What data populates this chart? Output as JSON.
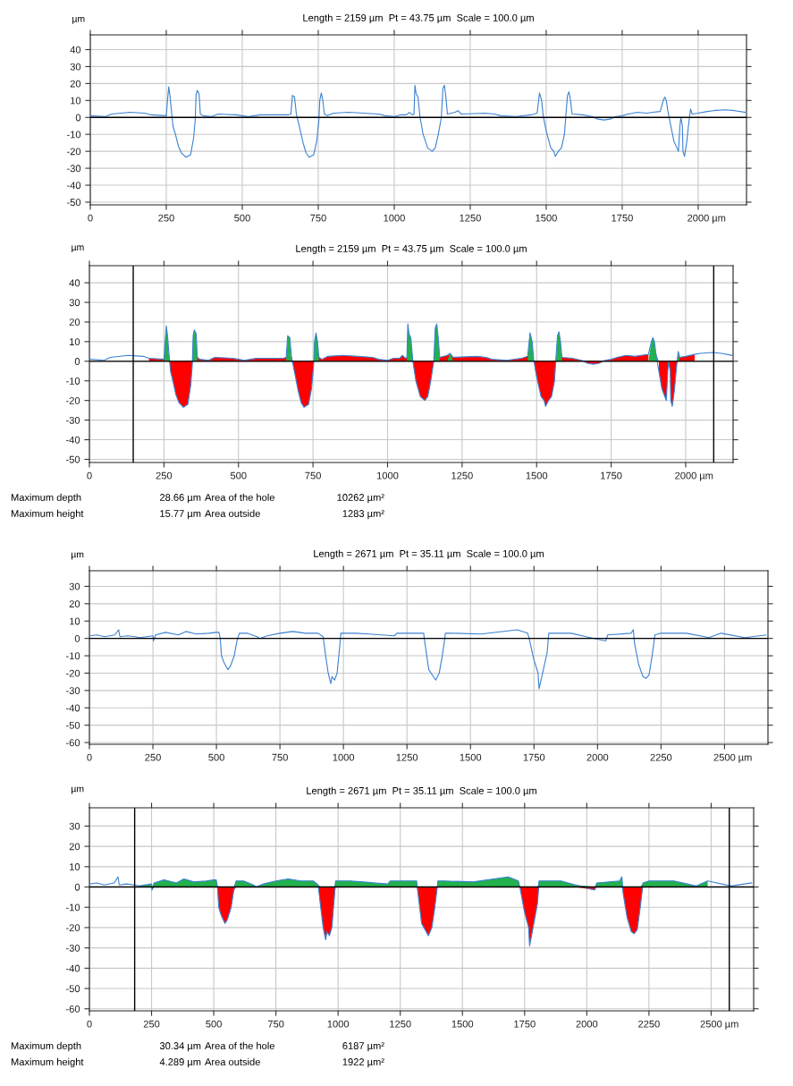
{
  "chart_data": [
    {
      "type": "line",
      "title": "Length = 2159 µm  Pt = 43.75 µm  Scale = 100.0 µm",
      "ylabel": "µm",
      "xlabel": "µm",
      "grid": true,
      "xlim": [
        0,
        2159
      ],
      "xticks": [
        0,
        250,
        500,
        750,
        1000,
        1250,
        1500,
        1750,
        2000
      ],
      "ylim": [
        -51.6,
        48.7
      ],
      "yticks": [
        -50,
        -40,
        -30,
        -20,
        -10,
        0,
        10,
        20,
        30,
        40
      ],
      "ref_lines": [
        {
          "axis": "y",
          "value": 0,
          "color": "#000000"
        }
      ],
      "series": [
        {
          "color": "#3c82d2",
          "x": [
            0,
            50,
            70,
            130,
            180,
            200,
            250,
            255,
            258,
            262,
            268,
            272,
            280,
            290,
            300,
            315,
            330,
            340,
            345,
            348,
            352,
            358,
            362,
            370,
            400,
            420,
            480,
            500,
            520,
            540,
            560,
            600,
            650,
            660,
            665,
            672,
            678,
            690,
            700,
            710,
            720,
            735,
            745,
            752,
            755,
            760,
            765,
            770,
            780,
            800,
            850,
            900,
            950,
            970,
            1000,
            1020,
            1040,
            1050,
            1060,
            1065,
            1068,
            1072,
            1078,
            1085,
            1095,
            1110,
            1125,
            1135,
            1145,
            1155,
            1160,
            1165,
            1170,
            1175,
            1200,
            1210,
            1220,
            1300,
            1330,
            1350,
            1400,
            1450,
            1470,
            1475,
            1478,
            1485,
            1490,
            1500,
            1515,
            1525,
            1530,
            1540,
            1550,
            1560,
            1565,
            1570,
            1575,
            1580,
            1585,
            1620,
            1650,
            1670,
            1690,
            1710,
            1730,
            1750,
            1770,
            1800,
            1830,
            1850,
            1875,
            1885,
            1890,
            1895,
            1900,
            1910,
            1920,
            1935,
            1940,
            1943,
            1948,
            1950,
            1955,
            1962,
            1968,
            1972,
            1975,
            1980,
            2000,
            2030,
            2050,
            2090,
            2120,
            2155
          ],
          "values": [
            1,
            0.5,
            2,
            3,
            2.5,
            1.5,
            1,
            12,
            18,
            13,
            2,
            -5,
            -10,
            -17,
            -21,
            -23.5,
            -22,
            -12,
            -2,
            13,
            16,
            14,
            2,
            1,
            0.5,
            2,
            1.5,
            1,
            0.5,
            1,
            1.5,
            1.5,
            1.5,
            2,
            13,
            12,
            2,
            -7,
            -15,
            -21,
            -23.5,
            -22,
            -14,
            -2,
            10,
            14.5,
            10,
            2,
            1,
            2.5,
            3,
            2.5,
            2,
            1,
            0.5,
            1.5,
            1.5,
            3,
            1.5,
            2,
            19,
            14,
            12,
            0,
            -10,
            -18,
            -20,
            -18,
            -10,
            0,
            17,
            19,
            12,
            2,
            3,
            4,
            2,
            2.5,
            2,
            1,
            0.5,
            1.5,
            2.5,
            10,
            14.5,
            10,
            1,
            -8,
            -18,
            -20,
            -23,
            -20,
            -18,
            -10,
            2,
            13,
            15,
            10,
            2,
            1.5,
            0.5,
            -1,
            -1.5,
            -1,
            0.5,
            1,
            2,
            3,
            2.5,
            3,
            3.5,
            10,
            12,
            10,
            4,
            -5,
            -14,
            -20,
            -5,
            0,
            -5,
            -20,
            -23,
            -15,
            -5,
            1,
            5,
            2,
            2.5,
            3.5,
            4,
            4.5,
            4,
            3
          ]
        }
      ]
    },
    {
      "type": "line",
      "title": "Length = 2159 µm  Pt = 43.75 µm  Scale = 100.0 µm",
      "ylabel": "µm",
      "xlabel": "µm",
      "grid": true,
      "xlim": [
        0,
        2159
      ],
      "xticks": [
        0,
        250,
        500,
        750,
        1000,
        1250,
        1500,
        1750,
        2000
      ],
      "ylim": [
        -51.6,
        48.7
      ],
      "yticks": [
        -50,
        -40,
        -30,
        -20,
        -10,
        0,
        10,
        20,
        30,
        40
      ],
      "ref_lines": [
        {
          "axis": "y",
          "value": 0,
          "color": "#000000"
        },
        {
          "axis": "x",
          "value": 147,
          "color": "#000000"
        },
        {
          "axis": "x",
          "value": 2094,
          "color": "#000000"
        }
      ],
      "annotations": [
        "Maximum depth",
        "28.66 µm",
        "Area of the hole",
        "10262 µm²",
        "Maximum height",
        "15.77 µm",
        "Area outside",
        "1283 µm²"
      ],
      "series": [
        {
          "type": "area",
          "color": "#ff0000",
          "x": [
            200,
            250,
            255,
            258,
            262,
            268,
            272,
            280,
            290,
            300,
            315,
            330,
            340,
            345,
            348,
            352,
            358,
            362,
            370,
            400,
            420,
            480,
            500,
            520,
            540,
            560,
            600,
            650,
            660,
            665,
            672,
            678,
            690,
            700,
            710,
            720,
            735,
            745,
            752,
            755,
            760,
            765,
            770,
            780,
            800,
            850,
            900,
            950,
            970,
            1000,
            1020,
            1040,
            1050,
            1060,
            1065,
            1068,
            1072,
            1078,
            1085,
            1095,
            1110,
            1125,
            1135,
            1145,
            1155,
            1160,
            1165,
            1170,
            1175,
            1200,
            1210,
            1220,
            1300,
            1330,
            1350,
            1400,
            1450,
            1470,
            1475,
            1478,
            1485,
            1490,
            1500,
            1515,
            1525,
            1530,
            1540,
            1550,
            1560,
            1565,
            1570,
            1575,
            1580,
            1585,
            1620,
            1650,
            1670,
            1690,
            1710,
            1730,
            1750,
            1770,
            1800,
            1830,
            1850,
            1875,
            1885,
            1890,
            1895,
            1900,
            1910,
            1920,
            1935,
            1940,
            1943,
            1948,
            1950,
            1955,
            1962,
            1968,
            1972,
            1975,
            1980,
            2000,
            2030
          ],
          "values": [
            1.5,
            1,
            3.5,
            3.5,
            3.5,
            2,
            -5,
            -10,
            -17,
            -21,
            -23.5,
            -22,
            -12,
            -2,
            3.5,
            3.5,
            3.5,
            2,
            1,
            0.5,
            2,
            1.5,
            1,
            0.5,
            1,
            1.5,
            1.5,
            1.5,
            2,
            3.5,
            3.5,
            2,
            -7,
            -15,
            -21,
            -23.5,
            -22,
            -14,
            -2,
            3.5,
            3.5,
            3.5,
            2,
            1,
            2.5,
            3,
            2.5,
            2,
            1,
            0.5,
            1.5,
            1.5,
            3,
            1.5,
            2,
            3.5,
            3.5,
            3.5,
            0,
            -10,
            -18,
            -20,
            -18,
            -10,
            0,
            3.5,
            3.5,
            3.5,
            2,
            3,
            3.5,
            2,
            2.5,
            2,
            1,
            0.5,
            1.5,
            2.5,
            3.5,
            3.5,
            3.5,
            1,
            -8,
            -18,
            -20,
            -23,
            -20,
            -18,
            -10,
            2,
            3.5,
            3.5,
            3.5,
            2,
            1.5,
            0.5,
            -1,
            -1.5,
            -1,
            0.5,
            1,
            2,
            3,
            2.5,
            3,
            3.5,
            null,
            null,
            null,
            null,
            -5,
            -14,
            -20,
            -5,
            0,
            -5,
            -20,
            -23,
            -15,
            -5,
            1,
            3.5,
            2,
            2.5,
            3.5
          ]
        },
        {
          "type": "area",
          "color": "#22b14c",
          "x": [
            200,
            250,
            255,
            258,
            262,
            268,
            272,
            280,
            290,
            300,
            315,
            330,
            340,
            345,
            348,
            352,
            358,
            362,
            370,
            400,
            420,
            480,
            500,
            520,
            540,
            560,
            600,
            650,
            660,
            665,
            672,
            678,
            690,
            700,
            710,
            720,
            735,
            745,
            752,
            755,
            760,
            765,
            770,
            780,
            800,
            850,
            900,
            950,
            970,
            1000,
            1020,
            1040,
            1050,
            1060,
            1065,
            1068,
            1072,
            1078,
            1085,
            1095,
            1110,
            1125,
            1135,
            1145,
            1155,
            1160,
            1165,
            1170,
            1175,
            1200,
            1210,
            1220,
            1300,
            1330,
            1350,
            1400,
            1450,
            1470,
            1475,
            1478,
            1485,
            1490,
            1500,
            1515,
            1525,
            1530,
            1540,
            1550,
            1560,
            1565,
            1570,
            1575,
            1580,
            1585,
            1620,
            1650,
            1670,
            1690,
            1710,
            1730,
            1750,
            1770,
            1800,
            1830,
            1850,
            1875,
            1885,
            1890,
            1895,
            1900,
            1910,
            1920,
            1935,
            1940,
            1943,
            1948,
            1950,
            1955,
            1962,
            1968,
            1972,
            1975,
            1980,
            2000,
            2030
          ],
          "values": [
            0,
            0,
            12,
            18,
            13,
            0,
            0,
            0,
            0,
            0,
            0,
            0,
            0,
            0,
            13,
            16,
            14,
            0,
            0,
            0,
            0,
            0,
            0,
            0,
            0,
            0,
            0,
            0,
            0,
            13,
            12,
            0,
            0,
            0,
            0,
            0,
            0,
            0,
            0,
            10,
            14.5,
            10,
            0,
            0,
            0,
            0,
            0,
            0,
            0,
            0,
            0,
            0,
            0,
            0,
            0,
            19,
            14,
            12,
            0,
            0,
            0,
            0,
            0,
            0,
            0,
            17,
            19,
            12,
            0,
            0,
            4,
            0,
            0,
            0,
            0,
            0,
            0,
            0,
            10,
            14.5,
            10,
            0,
            0,
            0,
            0,
            0,
            0,
            0,
            0,
            0,
            13,
            15,
            10,
            0,
            0,
            0,
            0,
            0,
            0,
            0,
            0,
            0,
            0,
            0,
            0,
            0,
            10,
            12,
            10,
            4,
            0,
            0,
            0,
            0,
            0,
            0,
            0,
            0,
            0,
            0,
            0,
            5,
            0,
            0,
            0
          ]
        },
        {
          "type": "line",
          "color": "#3c82d2",
          "x": [
            0,
            50,
            70,
            130,
            180,
            200,
            250,
            255,
            258,
            262,
            268,
            272,
            280,
            290,
            300,
            315,
            330,
            340,
            345,
            348,
            352,
            358,
            362,
            370,
            400,
            420,
            480,
            500,
            520,
            540,
            560,
            600,
            650,
            660,
            665,
            672,
            678,
            690,
            700,
            710,
            720,
            735,
            745,
            752,
            755,
            760,
            765,
            770,
            780,
            800,
            850,
            900,
            950,
            970,
            1000,
            1020,
            1040,
            1050,
            1060,
            1065,
            1068,
            1072,
            1078,
            1085,
            1095,
            1110,
            1125,
            1135,
            1145,
            1155,
            1160,
            1165,
            1170,
            1175,
            1200,
            1210,
            1220,
            1300,
            1330,
            1350,
            1400,
            1450,
            1470,
            1475,
            1478,
            1485,
            1490,
            1500,
            1515,
            1525,
            1530,
            1540,
            1550,
            1560,
            1565,
            1570,
            1575,
            1580,
            1585,
            1620,
            1650,
            1670,
            1690,
            1710,
            1730,
            1750,
            1770,
            1800,
            1830,
            1850,
            1875,
            1885,
            1890,
            1895,
            1900,
            1910,
            1920,
            1935,
            1940,
            1943,
            1948,
            1950,
            1955,
            1962,
            1968,
            1972,
            1975,
            1980,
            2000,
            2030,
            2050,
            2090,
            2120,
            2155
          ],
          "values": [
            1,
            0.5,
            2,
            3,
            2.5,
            1.5,
            1,
            12,
            18,
            13,
            2,
            -5,
            -10,
            -17,
            -21,
            -23.5,
            -22,
            -12,
            -2,
            13,
            16,
            14,
            2,
            1,
            0.5,
            2,
            1.5,
            1,
            0.5,
            1,
            1.5,
            1.5,
            1.5,
            2,
            13,
            12,
            2,
            -7,
            -15,
            -21,
            -23.5,
            -22,
            -14,
            -2,
            10,
            14.5,
            10,
            2,
            1,
            2.5,
            3,
            2.5,
            2,
            1,
            0.5,
            1.5,
            1.5,
            3,
            1.5,
            2,
            19,
            14,
            12,
            0,
            -10,
            -18,
            -20,
            -18,
            -10,
            0,
            17,
            19,
            12,
            2,
            3,
            4,
            2,
            2.5,
            2,
            1,
            0.5,
            1.5,
            2.5,
            10,
            14.5,
            10,
            1,
            -8,
            -18,
            -20,
            -23,
            -20,
            -18,
            -10,
            2,
            13,
            15,
            10,
            2,
            1.5,
            0.5,
            -1,
            -1.5,
            -1,
            0.5,
            1,
            2,
            3,
            2.5,
            3,
            3.5,
            10,
            12,
            10,
            4,
            -5,
            -14,
            -20,
            -5,
            0,
            -5,
            -20,
            -23,
            -15,
            -5,
            1,
            5,
            2,
            2.5,
            3.5,
            4,
            4.5,
            4,
            3
          ]
        }
      ]
    },
    {
      "type": "line",
      "title": "Length = 2671 µm  Pt = 35.11 µm  Scale = 100.0 µm",
      "ylabel": "µm",
      "xlabel": "µm",
      "grid": true,
      "xlim": [
        0,
        2671
      ],
      "xticks": [
        0,
        250,
        500,
        750,
        1000,
        1250,
        1500,
        1750,
        2000,
        2250,
        2500
      ],
      "ylim": [
        -61,
        39
      ],
      "yticks": [
        -60,
        -50,
        -40,
        -30,
        -20,
        -10,
        0,
        10,
        20,
        30
      ],
      "ref_lines": [
        {
          "axis": "y",
          "value": 0,
          "color": "#000000"
        }
      ],
      "series": [
        {
          "color": "#3c82d2",
          "x": [
            0,
            30,
            60,
            100,
            115,
            120,
            150,
            180,
            200,
            250,
            252,
            260,
            300,
            350,
            380,
            420,
            470,
            500,
            510,
            515,
            520,
            530,
            545,
            555,
            570,
            580,
            590,
            620,
            660,
            670,
            700,
            750,
            800,
            850,
            900,
            920,
            930,
            940,
            950,
            955,
            965,
            975,
            985,
            990,
            1050,
            1100,
            1150,
            1200,
            1210,
            1250,
            1316,
            1318,
            1328,
            1336,
            1363,
            1377,
            1389,
            1399,
            1401,
            1425,
            1542,
            1684,
            1725,
            1731,
            1749,
            1766,
            1770,
            1784,
            1802,
            1808,
            1896,
            1955,
            2032,
            2040,
            2132,
            2141,
            2146,
            2162,
            2179,
            2191,
            2203,
            2215,
            2226,
            2250,
            2350,
            2439,
            2486,
            2580,
            2663
          ],
          "values": [
            1.5,
            2,
            1,
            2,
            5,
            1,
            1.5,
            1,
            0.5,
            1.5,
            -1.5,
            2,
            3.5,
            2,
            4,
            2.5,
            3,
            3.5,
            3.5,
            0,
            -10,
            -14,
            -18,
            -16,
            -10,
            -2,
            3,
            3,
            1,
            0,
            1.5,
            3,
            4,
            3,
            3,
            1,
            -10,
            -20,
            -26,
            -22,
            -24,
            -20,
            -5,
            3,
            3,
            2.5,
            2,
            1.5,
            3,
            3,
            3,
            0,
            -10,
            -18,
            -24,
            -20,
            -10,
            0,
            3,
            3,
            2.5,
            5,
            3,
            0,
            -12,
            -20,
            -29,
            -20,
            -8,
            3,
            3,
            1,
            -1.5,
            2,
            3,
            5,
            -3,
            -15,
            -22,
            -23,
            -21,
            -10,
            2,
            3,
            3,
            0.5,
            3,
            0.5,
            2
          ]
        }
      ]
    },
    {
      "type": "line",
      "title": "Length = 2671 µm  Pt = 35.11 µm  Scale = 100.0 µm",
      "ylabel": "µm",
      "xlabel": "µm",
      "grid": true,
      "xlim": [
        0,
        2671
      ],
      "xticks": [
        0,
        250,
        500,
        750,
        1000,
        1250,
        1500,
        1750,
        2000,
        2250,
        2500
      ],
      "ylim": [
        -61,
        39
      ],
      "yticks": [
        -60,
        -50,
        -40,
        -30,
        -20,
        -10,
        0,
        10,
        20,
        30
      ],
      "ref_lines": [
        {
          "axis": "y",
          "value": 0,
          "color": "#000000"
        },
        {
          "axis": "x",
          "value": 182,
          "color": "#000000"
        },
        {
          "axis": "x",
          "value": 2573,
          "color": "#000000"
        }
      ],
      "annotations": [
        "Maximum depth",
        "30.34 µm",
        "Area of the hole",
        "6187 µm²",
        "Maximum height",
        "4.289 µm",
        "Area outside",
        "1922 µm²"
      ],
      "series": [
        {
          "type": "area",
          "color": "#ff0000",
          "x": [
            200,
            250,
            252,
            260,
            300,
            350,
            380,
            420,
            470,
            500,
            510,
            515,
            520,
            530,
            545,
            555,
            570,
            580,
            590,
            620,
            660,
            670,
            700,
            750,
            800,
            850,
            900,
            920,
            930,
            940,
            950,
            955,
            965,
            975,
            985,
            990,
            1050,
            1100,
            1150,
            1200,
            1210,
            1250,
            1316,
            1318,
            1328,
            1336,
            1363,
            1377,
            1389,
            1399,
            1401,
            1425,
            1542,
            1684,
            1725,
            1731,
            1749,
            1766,
            1770,
            1784,
            1802,
            1808,
            1896,
            1955,
            2032,
            2040,
            2132,
            2141,
            2146,
            2162,
            2179,
            2191,
            2203,
            2215,
            2226,
            2250,
            2350,
            2439,
            2486
          ],
          "values": [
            0,
            0,
            -1.5,
            0,
            0,
            0,
            0,
            0,
            0,
            0,
            0,
            0,
            -10,
            -14,
            -18,
            -16,
            -10,
            -2,
            0,
            0,
            0,
            0,
            0,
            0,
            0,
            0,
            0,
            0,
            -10,
            -20,
            -26,
            -22,
            -24,
            -20,
            -5,
            0,
            0,
            0,
            0,
            0,
            0,
            0,
            0,
            0,
            -10,
            -18,
            -24,
            -20,
            -10,
            0,
            0,
            0,
            0,
            0,
            0,
            0,
            -12,
            -20,
            -29,
            -20,
            -8,
            0,
            0,
            0,
            -1.5,
            0,
            0,
            0,
            -3,
            -15,
            -22,
            -23,
            -21,
            -10,
            0,
            0,
            0,
            0,
            0
          ]
        },
        {
          "type": "area",
          "color": "#22b14c",
          "x": [
            200,
            250,
            252,
            260,
            300,
            350,
            380,
            420,
            470,
            500,
            510,
            515,
            520,
            530,
            545,
            555,
            570,
            580,
            590,
            620,
            660,
            670,
            700,
            750,
            800,
            850,
            900,
            920,
            930,
            940,
            950,
            955,
            965,
            975,
            985,
            990,
            1050,
            1100,
            1150,
            1200,
            1210,
            1250,
            1316,
            1318,
            1328,
            1336,
            1363,
            1377,
            1389,
            1399,
            1401,
            1425,
            1542,
            1684,
            1725,
            1731,
            1749,
            1766,
            1770,
            1784,
            1802,
            1808,
            1896,
            1955,
            2032,
            2040,
            2132,
            2141,
            2146,
            2162,
            2179,
            2191,
            2203,
            2215,
            2226,
            2250,
            2350,
            2439,
            2486
          ],
          "values": [
            0.5,
            1.5,
            0,
            2,
            3.5,
            2,
            4,
            2.5,
            3,
            3.5,
            3.5,
            0,
            0,
            0,
            0,
            0,
            0,
            0,
            3,
            3,
            1,
            0,
            1.5,
            3,
            4,
            3,
            3,
            1,
            0,
            0,
            0,
            0,
            0,
            0,
            0,
            3,
            3,
            2.5,
            2,
            1.5,
            3,
            3,
            3,
            0,
            0,
            0,
            0,
            0,
            0,
            0,
            3,
            3,
            2.5,
            5,
            3,
            0,
            0,
            0,
            0,
            0,
            0,
            3,
            3,
            1,
            0,
            2,
            3,
            5,
            0,
            0,
            0,
            0,
            0,
            0,
            2,
            3,
            3,
            0.5,
            3
          ]
        },
        {
          "color": "#3c82d2",
          "x": [
            0,
            30,
            60,
            100,
            115,
            120,
            150,
            180,
            200,
            250,
            252,
            260,
            300,
            350,
            380,
            420,
            470,
            500,
            510,
            515,
            520,
            530,
            545,
            555,
            570,
            580,
            590,
            620,
            660,
            670,
            700,
            750,
            800,
            850,
            900,
            920,
            930,
            940,
            950,
            955,
            965,
            975,
            985,
            990,
            1050,
            1100,
            1150,
            1200,
            1210,
            1250,
            1316,
            1318,
            1328,
            1336,
            1363,
            1377,
            1389,
            1399,
            1401,
            1425,
            1542,
            1684,
            1725,
            1731,
            1749,
            1766,
            1770,
            1784,
            1802,
            1808,
            1896,
            1955,
            2032,
            2040,
            2132,
            2141,
            2146,
            2162,
            2179,
            2191,
            2203,
            2215,
            2226,
            2250,
            2350,
            2439,
            2486,
            2580,
            2663
          ],
          "values": [
            1.5,
            2,
            1,
            2,
            5,
            1,
            1.5,
            1,
            0.5,
            1.5,
            -1.5,
            2,
            3.5,
            2,
            4,
            2.5,
            3,
            3.5,
            3.5,
            0,
            -10,
            -14,
            -18,
            -16,
            -10,
            -2,
            3,
            3,
            1,
            0,
            1.5,
            3,
            4,
            3,
            3,
            1,
            -10,
            -20,
            -26,
            -22,
            -24,
            -20,
            -5,
            3,
            3,
            2.5,
            2,
            1.5,
            3,
            3,
            3,
            0,
            -10,
            -18,
            -24,
            -20,
            -10,
            0,
            3,
            3,
            2.5,
            5,
            3,
            0,
            -12,
            -20,
            -29,
            -20,
            -8,
            3,
            3,
            1,
            -1.5,
            2,
            3,
            5,
            -3,
            -15,
            -22,
            -23,
            -21,
            -10,
            2,
            3,
            3,
            0.5,
            3,
            0.5,
            2
          ]
        }
      ]
    }
  ]
}
